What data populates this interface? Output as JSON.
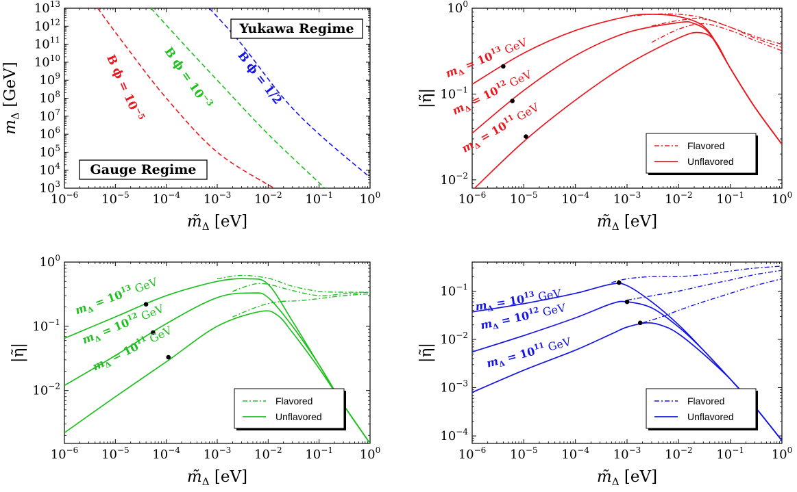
{
  "colors": {
    "red": "#e8191f",
    "green": "#1fbf1f",
    "blue": "#1414e6"
  },
  "chart_data": [
    {
      "type": "line",
      "xscale": "log",
      "yscale": "log",
      "xlim": [
        1e-06,
        1
      ],
      "ylim": [
        1000,
        10000000000000.0
      ],
      "x_ticks": [
        "10^-6",
        "10^-5",
        "10^-4",
        "10^-3",
        "10^-2",
        "10^-1",
        "10^0"
      ],
      "y_ticks": [
        "10^3",
        "10^4",
        "10^5",
        "10^6",
        "10^7",
        "10^8",
        "10^9",
        "10^10",
        "10^11",
        "10^12",
        "10^13"
      ],
      "xlabel": "m̃_Δ [eV]",
      "ylabel": "m_Δ [GeV]",
      "regime_labels": {
        "upper_right": "Yukawa Regime",
        "lower_left": "Gauge Regime"
      },
      "series": [
        {
          "name": "B_ϕ = 10^-5",
          "color": "red",
          "style": "dashed",
          "x": [
            4.5e-06,
            1.5e-05,
            0.0001,
            0.001,
            0.013
          ],
          "y": [
            10000000000000.0,
            100000000000.0,
            100000000.0,
            100000.0,
            1000
          ]
        },
        {
          "name": "B_ϕ = 10^-3",
          "color": "green",
          "style": "dashed",
          "x": [
            5e-05,
            0.00022,
            0.001,
            0.01,
            0.13
          ],
          "y": [
            10000000000000.0,
            100000000000.0,
            1000000000.0,
            1000000.0,
            1000
          ]
        },
        {
          "name": "B_ϕ = 1/2",
          "color": "blue",
          "style": "dashed",
          "x": [
            0.0007,
            0.003,
            0.02,
            0.1,
            1.0
          ],
          "y": [
            10000000000000.0,
            100000000000.0,
            100000000.0,
            1000000.0,
            4000
          ]
        }
      ]
    },
    {
      "type": "line",
      "xscale": "log",
      "yscale": "log",
      "xlim": [
        1e-06,
        1
      ],
      "ylim": [
        0.008,
        1
      ],
      "x_ticks": [
        "10^-6",
        "10^-5",
        "10^-4",
        "10^-3",
        "10^-2",
        "10^-1",
        "10^0"
      ],
      "y_ticks": [
        "10^-2",
        "10^-1",
        "10^0"
      ],
      "xlabel": "m̃_Δ [eV]",
      "ylabel": "|η̃|",
      "color": "red",
      "legend": {
        "flavored": "Flavored",
        "unflavored": "Unflavored"
      },
      "mass_labels": [
        {
          "base": "m_Δ = 10",
          "exp": "13",
          "unit": " GeV"
        },
        {
          "base": "m_Δ = 10",
          "exp": "12",
          "unit": " GeV"
        },
        {
          "base": "m_Δ = 10",
          "exp": "11",
          "unit": " GeV"
        }
      ],
      "series": [
        {
          "name": "m_Δ = 10^13 GeV",
          "kind": "unflavored",
          "x": [
            1e-06,
            1e-05,
            0.0001,
            0.001,
            0.003,
            0.01,
            0.03,
            0.06,
            0.1,
            0.3,
            1.0
          ],
          "y": [
            0.13,
            0.3,
            0.55,
            0.8,
            0.85,
            0.8,
            0.62,
            0.35,
            0.2,
            0.07,
            0.026
          ]
        },
        {
          "name": "m_Δ = 10^13 GeV",
          "kind": "flavored",
          "x": [
            0.001,
            0.003,
            0.01,
            0.03,
            0.1,
            0.3,
            1.0
          ],
          "y": [
            0.8,
            0.85,
            0.85,
            0.77,
            0.6,
            0.47,
            0.38
          ]
        },
        {
          "name": "m_Δ = 10^12 GeV",
          "kind": "unflavored",
          "x": [
            1e-06,
            1e-05,
            0.0001,
            0.001,
            0.01,
            0.02,
            0.04,
            0.1,
            0.3,
            1.0
          ],
          "y": [
            0.035,
            0.11,
            0.28,
            0.52,
            0.68,
            0.66,
            0.5,
            0.2,
            0.07,
            0.026
          ]
        },
        {
          "name": "m_Δ = 10^12 GeV",
          "kind": "flavored",
          "x": [
            0.003,
            0.01,
            0.03,
            0.1,
            0.3,
            1.0
          ],
          "y": [
            0.62,
            0.72,
            0.75,
            0.6,
            0.45,
            0.35
          ]
        },
        {
          "name": "m_Δ = 10^11 GeV",
          "kind": "unflavored",
          "x": [
            1e-06,
            1e-05,
            0.0001,
            0.001,
            0.01,
            0.025,
            0.05,
            0.1,
            0.3,
            1.0
          ],
          "y": [
            0.0075,
            0.028,
            0.085,
            0.22,
            0.45,
            0.52,
            0.42,
            0.2,
            0.07,
            0.026
          ]
        },
        {
          "name": "m_Δ = 10^11 GeV",
          "kind": "flavored",
          "x": [
            0.003,
            0.01,
            0.03,
            0.1,
            0.3,
            1.0
          ],
          "y": [
            0.4,
            0.57,
            0.66,
            0.55,
            0.42,
            0.32
          ]
        }
      ],
      "markers": [
        {
          "x": 4e-06,
          "y": 0.21
        },
        {
          "x": 6e-06,
          "y": 0.083
        },
        {
          "x": 1.1e-05,
          "y": 0.032
        }
      ]
    },
    {
      "type": "line",
      "xscale": "log",
      "yscale": "log",
      "xlim": [
        1e-06,
        1
      ],
      "ylim": [
        0.0015,
        1
      ],
      "x_ticks": [
        "10^-6",
        "10^-5",
        "10^-4",
        "10^-3",
        "10^-2",
        "10^-1",
        "10^0"
      ],
      "y_ticks": [
        "10^-2",
        "10^-1",
        "10^0"
      ],
      "xlabel": "m̃_Δ [eV]",
      "ylabel": "|η̃|",
      "color": "green",
      "legend": {
        "flavored": "Flavored",
        "unflavored": "Unflavored"
      },
      "mass_labels": [
        {
          "base": "m_Δ = 10",
          "exp": "13",
          "unit": " GeV"
        },
        {
          "base": "m_Δ = 10",
          "exp": "12",
          "unit": " GeV"
        },
        {
          "base": "m_Δ = 10",
          "exp": "11",
          "unit": " GeV"
        }
      ],
      "series": [
        {
          "name": "m_Δ = 10^13 GeV",
          "kind": "unflavored",
          "x": [
            1e-06,
            1e-05,
            0.0001,
            0.001,
            0.004,
            0.01,
            0.03,
            0.1,
            0.3,
            1.0
          ],
          "y": [
            0.065,
            0.14,
            0.3,
            0.5,
            0.55,
            0.45,
            0.12,
            0.025,
            0.006,
            0.0015
          ]
        },
        {
          "name": "m_Δ = 10^13 GeV",
          "kind": "flavored",
          "x": [
            0.001,
            0.003,
            0.01,
            0.03,
            0.1,
            0.3,
            1.0
          ],
          "y": [
            0.55,
            0.62,
            0.56,
            0.42,
            0.35,
            0.34,
            0.34
          ]
        },
        {
          "name": "m_Δ = 10^12 GeV",
          "kind": "unflavored",
          "x": [
            1e-06,
            1e-05,
            0.0001,
            0.001,
            0.005,
            0.01,
            0.03,
            0.1,
            0.3,
            1.0
          ],
          "y": [
            0.012,
            0.035,
            0.11,
            0.28,
            0.33,
            0.28,
            0.1,
            0.025,
            0.006,
            0.0015
          ]
        },
        {
          "name": "m_Δ = 10^12 GeV",
          "kind": "flavored",
          "x": [
            0.002,
            0.005,
            0.01,
            0.03,
            0.1,
            0.3,
            1.0
          ],
          "y": [
            0.35,
            0.45,
            0.45,
            0.36,
            0.3,
            0.32,
            0.34
          ]
        },
        {
          "name": "m_Δ = 10^11 GeV",
          "kind": "unflavored",
          "x": [
            1e-06,
            1e-05,
            0.0001,
            0.001,
            0.007,
            0.015,
            0.03,
            0.1,
            0.3,
            1.0
          ],
          "y": [
            0.0022,
            0.008,
            0.028,
            0.1,
            0.17,
            0.15,
            0.08,
            0.022,
            0.006,
            0.0015
          ]
        },
        {
          "name": "m_Δ = 10^11 GeV",
          "kind": "flavored",
          "x": [
            0.002,
            0.006,
            0.015,
            0.04,
            0.1,
            0.3,
            1.0
          ],
          "y": [
            0.14,
            0.2,
            0.24,
            0.25,
            0.27,
            0.3,
            0.32
          ]
        }
      ],
      "markers": [
        {
          "x": 4e-05,
          "y": 0.22
        },
        {
          "x": 5.5e-05,
          "y": 0.08
        },
        {
          "x": 0.00011,
          "y": 0.033
        }
      ]
    },
    {
      "type": "line",
      "xscale": "log",
      "yscale": "log",
      "xlim": [
        1e-06,
        1
      ],
      "ylim": [
        7e-05,
        0.4
      ],
      "x_ticks": [
        "10^-6",
        "10^-5",
        "10^-4",
        "10^-3",
        "10^-2",
        "10^-1",
        "10^0"
      ],
      "y_ticks": [
        "10^-4",
        "10^-3",
        "10^-2",
        "10^-1"
      ],
      "xlabel": "m̃_Δ [eV]",
      "ylabel": "|η̃|",
      "color": "blue",
      "legend": {
        "flavored": "Flavored",
        "unflavored": "Unflavored"
      },
      "mass_labels": [
        {
          "base": "m_Δ = 10",
          "exp": "13",
          "unit": " GeV"
        },
        {
          "base": "m_Δ = 10",
          "exp": "12",
          "unit": " GeV"
        },
        {
          "base": "m_Δ = 10",
          "exp": "11",
          "unit": " GeV"
        }
      ],
      "series": [
        {
          "name": "m_Δ = 10^13 GeV",
          "kind": "unflavored",
          "x": [
            1e-06,
            1e-05,
            0.0001,
            0.0005,
            0.001,
            0.003,
            0.01,
            0.03,
            0.1,
            0.3,
            1.0
          ],
          "y": [
            0.037,
            0.055,
            0.09,
            0.14,
            0.13,
            0.06,
            0.02,
            0.006,
            0.0015,
            0.0004,
            8e-05
          ]
        },
        {
          "name": "m_Δ = 10^13 GeV",
          "kind": "flavored",
          "x": [
            0.0005,
            0.001,
            0.003,
            0.01,
            0.03,
            0.1,
            0.3,
            1.0
          ],
          "y": [
            0.15,
            0.18,
            0.2,
            0.2,
            0.22,
            0.26,
            0.3,
            0.33
          ]
        },
        {
          "name": "m_Δ = 10^12 GeV",
          "kind": "unflavored",
          "x": [
            1e-06,
            1e-05,
            0.0001,
            0.0005,
            0.001,
            0.003,
            0.01,
            0.03,
            0.1,
            0.3,
            1.0
          ],
          "y": [
            0.0055,
            0.012,
            0.028,
            0.055,
            0.06,
            0.045,
            0.018,
            0.006,
            0.0015,
            0.0004,
            8e-05
          ]
        },
        {
          "name": "m_Δ = 10^12 GeV",
          "kind": "flavored",
          "x": [
            0.001,
            0.003,
            0.01,
            0.03,
            0.1,
            0.3,
            1.0
          ],
          "y": [
            0.065,
            0.08,
            0.1,
            0.13,
            0.17,
            0.22,
            0.27
          ]
        },
        {
          "name": "m_Δ = 10^11 GeV",
          "kind": "unflavored",
          "x": [
            1e-06,
            1e-05,
            0.0001,
            0.0005,
            0.001,
            0.0025,
            0.005,
            0.01,
            0.03,
            0.1,
            0.3,
            1.0
          ],
          "y": [
            0.0008,
            0.0023,
            0.006,
            0.013,
            0.018,
            0.022,
            0.019,
            0.013,
            0.005,
            0.0015,
            0.0004,
            8e-05
          ]
        },
        {
          "name": "m_Δ = 10^11 GeV",
          "kind": "flavored",
          "x": [
            0.002,
            0.005,
            0.01,
            0.03,
            0.1,
            0.3,
            1.0
          ],
          "y": [
            0.022,
            0.03,
            0.04,
            0.06,
            0.09,
            0.13,
            0.18
          ]
        }
      ],
      "markers": [
        {
          "x": 0.0007,
          "y": 0.15
        },
        {
          "x": 0.001,
          "y": 0.06
        },
        {
          "x": 0.0018,
          "y": 0.022
        }
      ]
    }
  ]
}
